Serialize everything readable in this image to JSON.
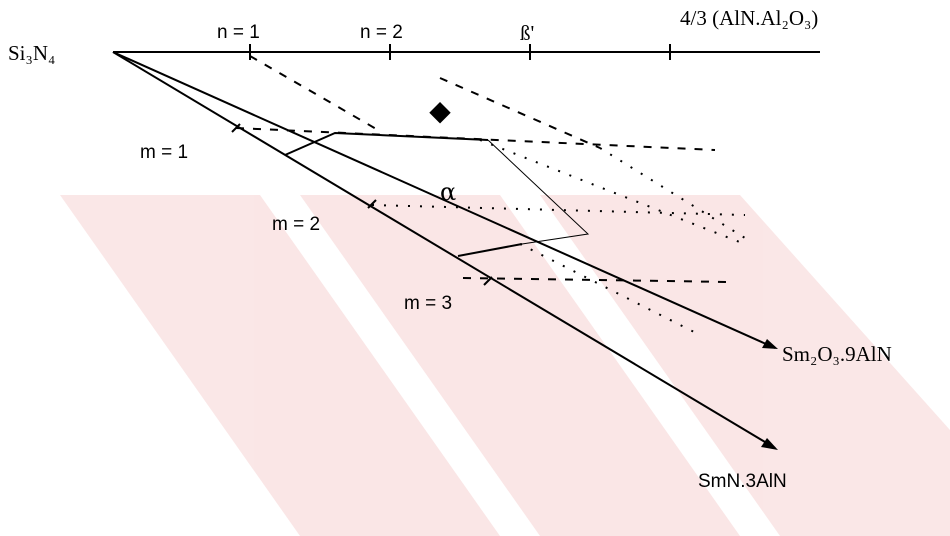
{
  "diagram": {
    "corner_labels": {
      "si3n4": "Si₃N₄",
      "aln_al2o3": "4/3 (AlN.Al₂O₃)",
      "sm2o3_9aln": "Sm₂O₃.9AlN",
      "smn_3aln": "SmN.3AlN"
    },
    "n_labels": [
      "n = 1",
      "n = 2"
    ],
    "beta_label": "ß'",
    "alpha_label": "α",
    "m_labels": [
      "m = 1",
      "m = 2",
      "m = 3"
    ],
    "marker_glyph": "◆",
    "colors": {
      "ink": "#000000",
      "watermark": "#f6d3d3"
    }
  }
}
